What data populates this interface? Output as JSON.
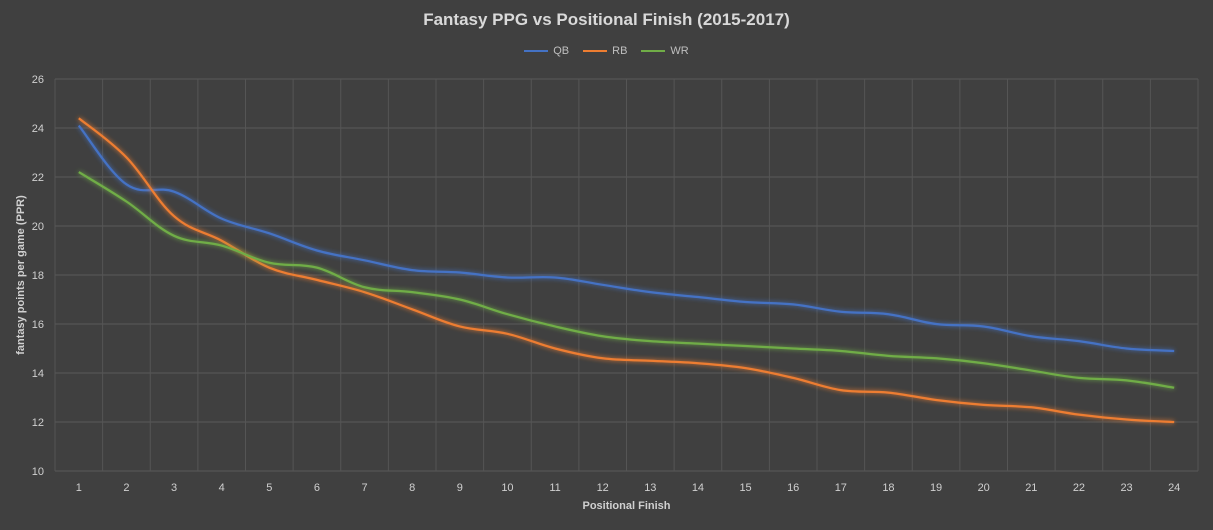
{
  "chart_data": {
    "type": "line",
    "title": "Fantasy PPG vs Positional Finish (2015-2017)",
    "xlabel": "Positional Finish",
    "ylabel": "fantasy points per game (PPR)",
    "x": [
      1,
      2,
      3,
      4,
      5,
      6,
      7,
      8,
      9,
      10,
      11,
      12,
      13,
      14,
      15,
      16,
      17,
      18,
      19,
      20,
      21,
      22,
      23,
      24
    ],
    "ylim": [
      10,
      26
    ],
    "yticks": [
      10,
      12,
      14,
      16,
      18,
      20,
      22,
      24,
      26
    ],
    "grid": true,
    "legend": "top",
    "series": [
      {
        "name": "QB",
        "color": "#4472c4",
        "values": [
          24.1,
          21.7,
          21.4,
          20.3,
          19.7,
          19.0,
          18.6,
          18.2,
          18.1,
          17.9,
          17.9,
          17.6,
          17.3,
          17.1,
          16.9,
          16.8,
          16.5,
          16.4,
          16.0,
          15.9,
          15.5,
          15.3,
          15.0,
          14.9
        ]
      },
      {
        "name": "RB",
        "color": "#ed7d31",
        "values": [
          24.4,
          22.8,
          20.4,
          19.4,
          18.3,
          17.8,
          17.3,
          16.6,
          15.9,
          15.6,
          15.0,
          14.6,
          14.5,
          14.4,
          14.2,
          13.8,
          13.3,
          13.2,
          12.9,
          12.7,
          12.6,
          12.3,
          12.1,
          12.0
        ]
      },
      {
        "name": "WR",
        "color": "#70ad47",
        "values": [
          22.2,
          21.0,
          19.6,
          19.2,
          18.5,
          18.3,
          17.5,
          17.3,
          17.0,
          16.4,
          15.9,
          15.5,
          15.3,
          15.2,
          15.1,
          15.0,
          14.9,
          14.7,
          14.6,
          14.4,
          14.1,
          13.8,
          13.7,
          13.4
        ]
      }
    ]
  }
}
